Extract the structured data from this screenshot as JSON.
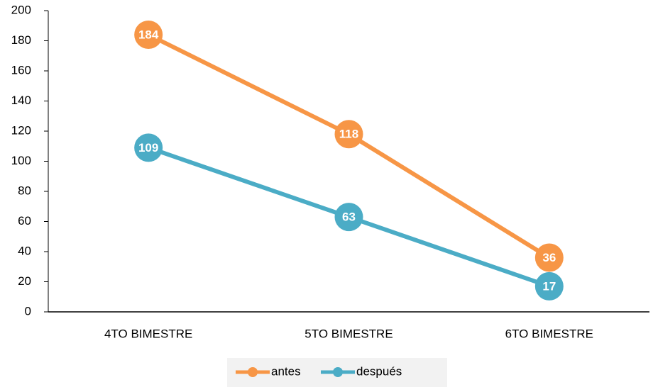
{
  "chart_data": {
    "type": "line",
    "categories": [
      "4TO BIMESTRE",
      "5TO BIMESTRE",
      "6TO BIMESTRE"
    ],
    "series": [
      {
        "name": "antes",
        "color": "#f79646",
        "values": [
          184,
          118,
          36
        ]
      },
      {
        "name": "después",
        "color": "#4bacc6",
        "values": [
          109,
          63,
          17
        ]
      }
    ],
    "ylim": [
      0,
      200
    ],
    "yticks": [
      0,
      20,
      40,
      60,
      80,
      100,
      120,
      140,
      160,
      180,
      200
    ],
    "grid": false,
    "legend": "bottom"
  }
}
